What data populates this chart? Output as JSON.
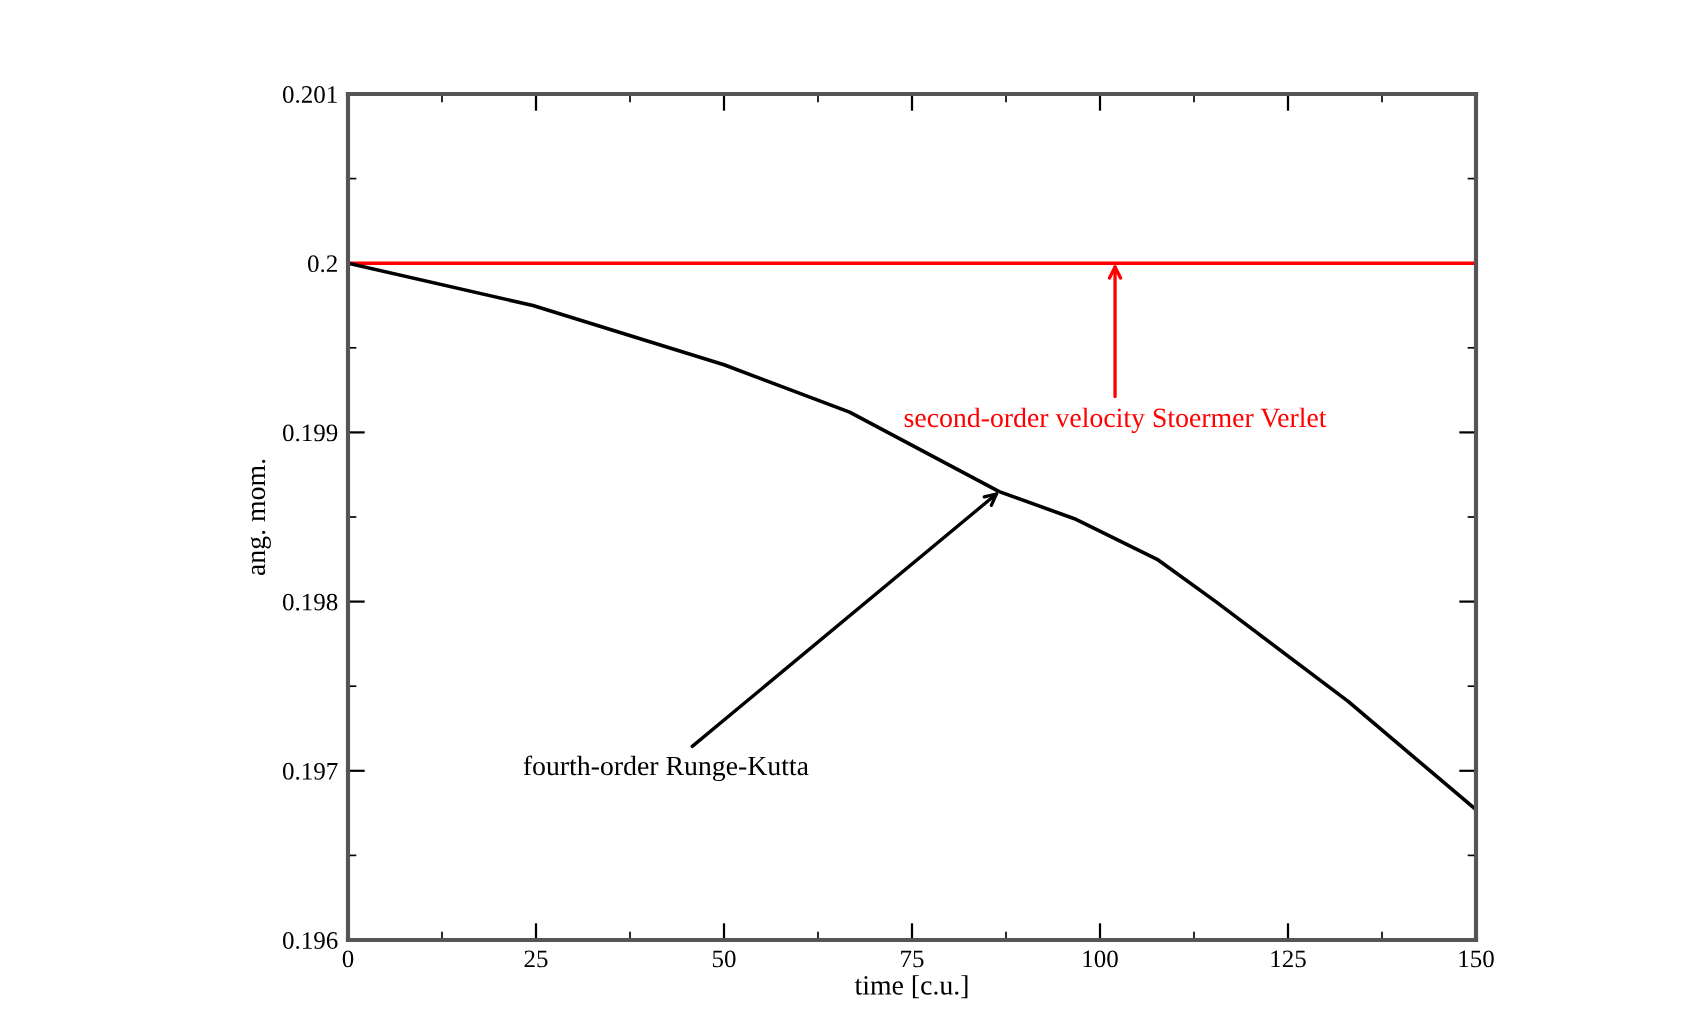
{
  "chart_data": {
    "type": "line",
    "xlabel": "time [c.u.]",
    "ylabel": "ang. mom.",
    "xlim": [
      0,
      150
    ],
    "xticks": [
      0,
      25,
      50,
      75,
      100,
      125,
      150
    ],
    "ylim": [
      0.196,
      0.201
    ],
    "yticks": [
      0.196,
      0.197,
      0.198,
      0.199,
      {
        "value": 0.2,
        "label": "0.2"
      },
      0.201
    ],
    "grid": false,
    "legend": false,
    "marker": "none",
    "line_style": "solid",
    "series": [
      {
        "color": "#ff0000",
        "x": [
          0,
          150
        ],
        "values": [
          0.2,
          0.2
        ]
      },
      {
        "color": "#000000",
        "x": [
          0,
          24.6,
          50,
          66.7,
          86.6,
          96.6,
          107.6,
          115.4,
          133,
          150
        ],
        "values": [
          0.2,
          0.19975,
          0.1994,
          0.19912,
          0.19865,
          0.19849,
          0.19825,
          0.198,
          0.19741,
          0.19677
        ]
      }
    ],
    "annotations": [
      {
        "text": "second-order velocity Stoermer Verlet",
        "x": 102,
        "y": 0.2
      },
      {
        "text": "fourth-order Runge-Kutta",
        "x": 86.6,
        "y": 0.19865
      }
    ]
  }
}
